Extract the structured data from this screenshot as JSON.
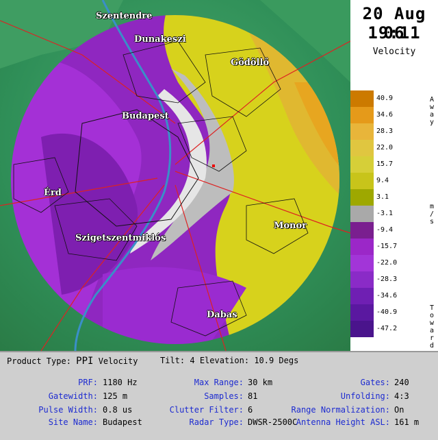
{
  "header": {
    "date": "20 Aug 06",
    "time": "19:11",
    "product": "Velocity"
  },
  "cities": [
    {
      "name": "Szentendre",
      "icon": "city-label"
    },
    {
      "name": "Dunakeszi"
    },
    {
      "name": "Gödöllő"
    },
    {
      "name": "Budapest"
    },
    {
      "name": "Érd"
    },
    {
      "name": "Szigetszentmiklós"
    },
    {
      "name": "Monor"
    },
    {
      "name": "Dabas"
    }
  ],
  "legend": {
    "ticks": [
      "40.9",
      "34.6",
      "28.3",
      "22.0",
      "15.7",
      "9.4",
      "3.1",
      "-3.1",
      "-9.4",
      "-15.7",
      "-22.0",
      "-28.3",
      "-34.6",
      "-40.9",
      "-47.2"
    ],
    "colors": [
      "#cc7a00",
      "#e59a1a",
      "#e8b53a",
      "#e0c640",
      "#d6cf38",
      "#c8c41a",
      "#9ea800",
      "#a9a9a9",
      "#7a1f8f",
      "#9b27c8",
      "#a235d8",
      "#8a2bc7",
      "#6f1fb3",
      "#5a18a0",
      "#4a148c"
    ],
    "away_label": "Away",
    "towards_label": "Towards",
    "unit_label": "m/s"
  },
  "info": {
    "product_type_label": "Product Type:",
    "product_type_value": "PPI",
    "product_name": "Velocity",
    "tilt_label": "Tilt:",
    "tilt_value": "4",
    "elevation_label": "Elevation:",
    "elevation_value": "10.9 Degs",
    "prf_label": "PRF:",
    "prf_value": "1180 Hz",
    "gatewidth_label": "Gatewidth:",
    "gatewidth_value": "125 m",
    "pulse_width_label": "Pulse Width:",
    "pulse_width_value": "0.8 us",
    "site_name_label": "Site Name:",
    "site_name_value": "Budapest",
    "max_range_label": "Max Range:",
    "max_range_value": "30 km",
    "samples_label": "Samples:",
    "samples_value": "81",
    "clutter_filter_label": "Clutter Filter:",
    "clutter_filter_value": "6",
    "radar_type_label": "Radar Type:",
    "radar_type_value": "DWSR-2500C",
    "gates_label": "Gates:",
    "gates_value": "240",
    "unfolding_label": "Unfolding:",
    "unfolding_value": "4:3",
    "range_norm_label": "Range Normalization:",
    "range_norm_value": "On",
    "antenna_label": "Antenna Height ASL:",
    "antenna_value": "161 m"
  }
}
